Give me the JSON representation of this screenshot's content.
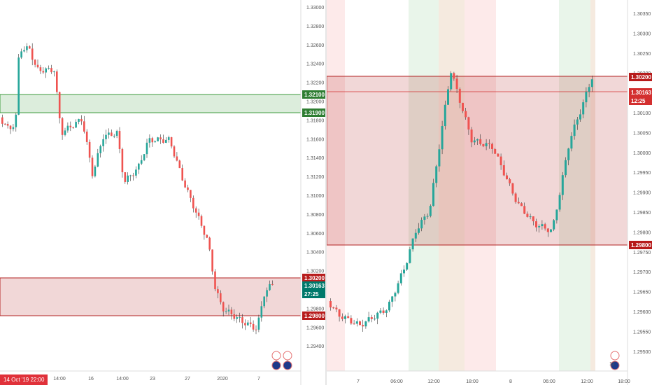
{
  "left_chart": {
    "price_ticks": [
      "1.33000",
      "1.32800",
      "1.32600",
      "1.32400",
      "1.32200",
      "1.32000",
      "1.31800",
      "1.31600",
      "1.31400",
      "1.31200",
      "1.31000",
      "1.30800",
      "1.30600",
      "1.30400",
      "1.30200",
      "1.30000",
      "1.29800",
      "1.29600",
      "1.29400"
    ],
    "time_ticks": [
      "14:00",
      "16",
      "14:00",
      "23",
      "27",
      "2020",
      "7"
    ],
    "date_badge": "14 Oct '19   22:00",
    "level_badges": {
      "supply_top": "1.32100",
      "supply_bottom": "1.31900",
      "demand_top": "1.30200",
      "current": "1.30163",
      "countdown": "27:25",
      "demand_bottom": "1.29800"
    },
    "event_counts": [
      "3",
      "3"
    ]
  },
  "right_chart": {
    "price_ticks": [
      "1.30350",
      "1.30300",
      "1.30250",
      "1.30200",
      "1.30150",
      "1.30100",
      "1.30050",
      "1.30000",
      "1.29950",
      "1.29900",
      "1.29850",
      "1.29800",
      "1.29750",
      "1.29700",
      "1.29650",
      "1.29600",
      "1.29550",
      "1.29500"
    ],
    "time_ticks": [
      "7",
      "06:00",
      "12:00",
      "18:00",
      "8",
      "06:00",
      "12:00",
      "18:00"
    ],
    "level_badges": {
      "zone_top": "1.30200",
      "current": "1.30163",
      "countdown": "12:25",
      "zone_bottom": "1.29800"
    },
    "event_counts": [
      "12"
    ]
  },
  "colors": {
    "bull": "#26a69a",
    "bear": "#ef5350",
    "supply_zone": "#3c9a3c",
    "demand_zone": "#b22222"
  }
}
